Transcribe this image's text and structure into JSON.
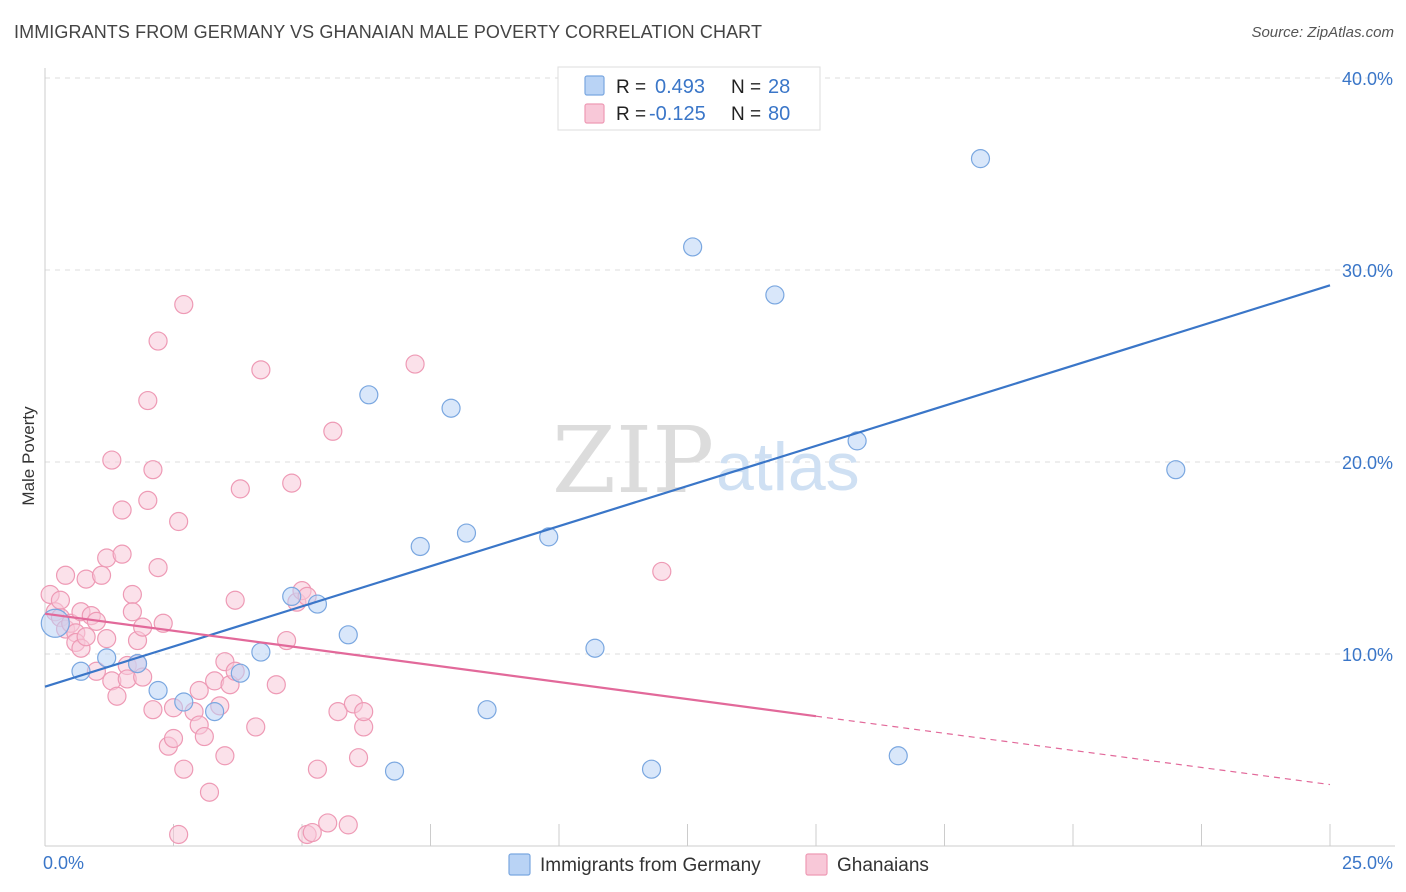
{
  "header": {
    "title": "IMMIGRANTS FROM GERMANY VS GHANAIAN MALE POVERTY CORRELATION CHART",
    "source": "Source: ZipAtlas.com"
  },
  "watermark": {
    "part1": "ZIP",
    "part2": "atlas"
  },
  "stats": [
    {
      "r_label": "R =",
      "r_value": "0.493",
      "n_label": "N =",
      "n_value": "28",
      "swatch_fill": "#b9d3f5",
      "swatch_stroke": "#7aa7e0"
    },
    {
      "r_label": "R =",
      "r_value": "-0.125",
      "n_label": "N =",
      "n_value": "80",
      "swatch_fill": "#f8c8d8",
      "swatch_stroke": "#ee9ab5"
    }
  ],
  "legend": [
    {
      "label": "Immigrants from Germany",
      "fill": "#b9d3f5",
      "stroke": "#7aa7e0"
    },
    {
      "label": "Ghanaians",
      "fill": "#f8c8d8",
      "stroke": "#ee9ab5"
    }
  ],
  "chart_data": {
    "type": "scatter",
    "title": "IMMIGRANTS FROM GERMANY VS GHANAIAN MALE POVERTY CORRELATION CHART",
    "xlabel": "",
    "ylabel": "Male Poverty",
    "xlim": [
      0,
      25
    ],
    "ylim": [
      0,
      40
    ],
    "x_tick_labels": [
      "0.0%",
      "25.0%"
    ],
    "y_ticks": [
      10,
      20,
      30,
      40
    ],
    "y_tick_labels": [
      "10.0%",
      "20.0%",
      "30.0%",
      "40.0%"
    ],
    "grid": true,
    "legend_position": "bottom",
    "series": [
      {
        "name": "Immigrants from Germany",
        "color": "#3a76c8",
        "fill": "#b9d3f5",
        "stroke": "#7aa7e0",
        "r": 0.493,
        "n": 28,
        "trend": {
          "x0": 0,
          "y0": 8.3,
          "x1": 25,
          "y1": 29.2,
          "solid_to": 25
        },
        "points": [
          [
            0.2,
            11.6,
            14
          ],
          [
            0.7,
            9.1,
            9
          ],
          [
            1.2,
            9.8,
            9
          ],
          [
            1.8,
            9.5,
            9
          ],
          [
            2.2,
            8.1,
            9
          ],
          [
            2.7,
            7.5,
            9
          ],
          [
            3.3,
            7.0,
            9
          ],
          [
            3.8,
            9.0,
            9
          ],
          [
            4.2,
            10.1,
            9
          ],
          [
            4.8,
            13.0,
            9
          ],
          [
            5.3,
            12.6,
            9
          ],
          [
            5.9,
            11.0,
            9
          ],
          [
            6.3,
            23.5,
            9
          ],
          [
            6.8,
            3.9,
            9
          ],
          [
            7.3,
            15.6,
            9
          ],
          [
            7.9,
            22.8,
            9
          ],
          [
            8.2,
            16.3,
            9
          ],
          [
            8.6,
            7.1,
            9
          ],
          [
            9.8,
            16.1,
            9
          ],
          [
            10.6,
            39.2,
            9
          ],
          [
            10.7,
            10.3,
            9
          ],
          [
            11.8,
            4.0,
            9
          ],
          [
            12.6,
            31.2,
            9
          ],
          [
            14.2,
            28.7,
            9
          ],
          [
            15.8,
            21.1,
            9
          ],
          [
            16.6,
            4.7,
            9
          ],
          [
            18.2,
            35.8,
            9
          ],
          [
            22.0,
            19.6,
            9
          ]
        ]
      },
      {
        "name": "Ghanaians",
        "color": "#e2699a",
        "fill": "#f8c8d8",
        "stroke": "#ee9ab5",
        "r": -0.125,
        "n": 80,
        "trend": {
          "x0": 0,
          "y0": 12.1,
          "x1": 25,
          "y1": 3.2,
          "solid_to": 15
        },
        "points": [
          [
            0.1,
            13.1,
            9
          ],
          [
            0.2,
            12.2,
            9
          ],
          [
            0.3,
            11.9,
            9
          ],
          [
            0.4,
            11.3,
            9
          ],
          [
            0.4,
            14.1,
            9
          ],
          [
            0.5,
            11.6,
            9
          ],
          [
            0.6,
            11.1,
            9
          ],
          [
            0.6,
            10.6,
            9
          ],
          [
            0.7,
            10.3,
            9
          ],
          [
            0.7,
            12.2,
            9
          ],
          [
            0.8,
            10.9,
            9
          ],
          [
            0.8,
            13.9,
            9
          ],
          [
            0.9,
            12.0,
            9
          ],
          [
            1.0,
            11.7,
            9
          ],
          [
            1.0,
            9.1,
            9
          ],
          [
            1.1,
            14.1,
            9
          ],
          [
            1.2,
            15.0,
            9
          ],
          [
            1.2,
            10.8,
            9
          ],
          [
            1.3,
            20.1,
            9
          ],
          [
            1.3,
            8.6,
            9
          ],
          [
            1.4,
            7.8,
            9
          ],
          [
            1.5,
            17.5,
            9
          ],
          [
            1.5,
            15.2,
            9
          ],
          [
            1.6,
            9.4,
            9
          ],
          [
            1.6,
            8.7,
            9
          ],
          [
            1.7,
            13.1,
            9
          ],
          [
            1.7,
            12.2,
            9
          ],
          [
            1.8,
            9.5,
            9
          ],
          [
            1.8,
            10.7,
            9
          ],
          [
            1.9,
            11.4,
            9
          ],
          [
            1.9,
            8.8,
            9
          ],
          [
            2.0,
            18.0,
            9
          ],
          [
            2.0,
            23.2,
            9
          ],
          [
            2.1,
            7.1,
            9
          ],
          [
            2.1,
            19.6,
            9
          ],
          [
            2.2,
            26.3,
            9
          ],
          [
            2.2,
            14.5,
            9
          ],
          [
            2.3,
            11.6,
            9
          ],
          [
            2.4,
            5.2,
            9
          ],
          [
            2.5,
            7.2,
            9
          ],
          [
            2.5,
            5.6,
            9
          ],
          [
            2.6,
            16.9,
            9
          ],
          [
            2.6,
            0.6,
            9
          ],
          [
            2.7,
            4.0,
            9
          ],
          [
            2.7,
            28.2,
            9
          ],
          [
            2.9,
            7.0,
            9
          ],
          [
            3.0,
            6.3,
            9
          ],
          [
            3.0,
            8.1,
            9
          ],
          [
            3.1,
            5.7,
            9
          ],
          [
            3.2,
            2.8,
            9
          ],
          [
            3.3,
            8.6,
            9
          ],
          [
            3.4,
            7.3,
            9
          ],
          [
            3.5,
            9.6,
            9
          ],
          [
            3.5,
            4.7,
            9
          ],
          [
            3.6,
            8.4,
            9
          ],
          [
            3.7,
            9.1,
            9
          ],
          [
            3.7,
            12.8,
            9
          ],
          [
            3.8,
            18.6,
            9
          ],
          [
            4.1,
            6.2,
            9
          ],
          [
            4.2,
            24.8,
            9
          ],
          [
            4.5,
            8.4,
            9
          ],
          [
            4.7,
            10.7,
            9
          ],
          [
            4.8,
            18.9,
            9
          ],
          [
            4.9,
            12.7,
            9
          ],
          [
            5.0,
            13.3,
            9
          ],
          [
            5.1,
            13.0,
            9
          ],
          [
            5.1,
            0.6,
            9
          ],
          [
            5.2,
            0.7,
            9
          ],
          [
            5.3,
            4.0,
            9
          ],
          [
            5.5,
            1.2,
            9
          ],
          [
            5.6,
            21.6,
            9
          ],
          [
            5.7,
            7.0,
            9
          ],
          [
            5.9,
            1.1,
            9
          ],
          [
            6.0,
            7.4,
            9
          ],
          [
            6.1,
            4.6,
            9
          ],
          [
            6.2,
            6.2,
            9
          ],
          [
            6.2,
            7.0,
            9
          ],
          [
            7.2,
            25.1,
            9
          ],
          [
            12.0,
            14.3,
            9
          ],
          [
            0.3,
            12.8,
            9
          ]
        ]
      }
    ]
  }
}
